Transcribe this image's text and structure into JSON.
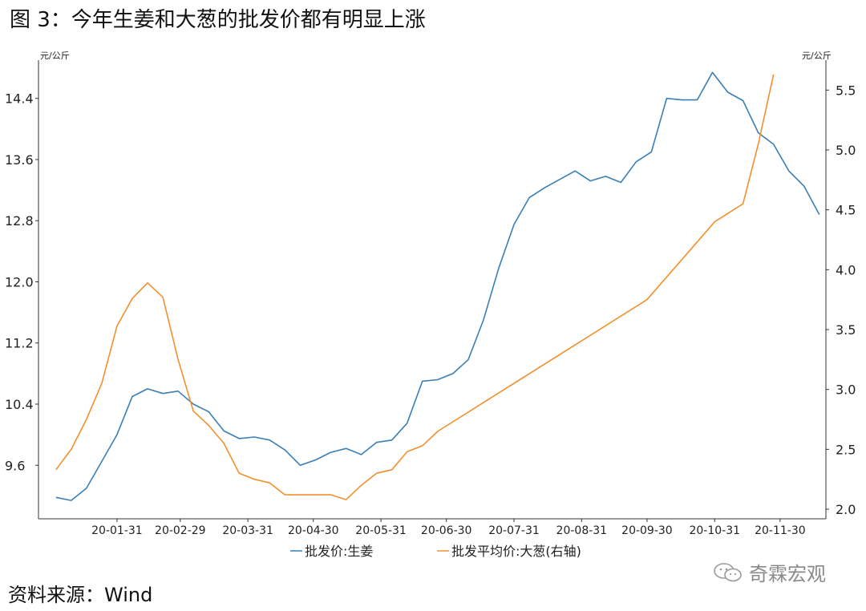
{
  "title": "图 3：今年生姜和大葱的批发价都有明显上涨",
  "source": "资料来源：Wind",
  "watermark": "奇霖宏观",
  "chart_data": {
    "type": "line",
    "left_unit": "元/公斤",
    "right_unit": "元/公斤",
    "x_ticks": [
      "20-01-31",
      "20-02-29",
      "20-03-31",
      "20-04-30",
      "20-05-31",
      "20-06-30",
      "20-07-31",
      "20-08-31",
      "20-09-30",
      "20-10-31",
      "20-11-30"
    ],
    "left_axis": {
      "min": 8.9,
      "max": 14.9,
      "ticks": [
        9.6,
        10.4,
        11.2,
        12.0,
        12.8,
        13.6,
        14.4
      ],
      "tick_labels": [
        "9.6",
        "10.4",
        "11.2",
        "12.0",
        "12.8",
        "13.6",
        "14.4"
      ]
    },
    "right_axis": {
      "min": 1.92,
      "max": 5.75,
      "ticks": [
        2.0,
        2.5,
        3.0,
        3.5,
        4.0,
        4.5,
        5.0,
        5.5
      ],
      "tick_labels": [
        "2.0",
        "2.5",
        "3.0",
        "3.5",
        "4.0",
        "4.5",
        "5.0",
        "5.5"
      ]
    },
    "series": [
      {
        "name": "批发价:生姜",
        "axis": "left",
        "color": "#3a7fb5",
        "x": [
          "2020-01-03",
          "2020-01-10",
          "2020-01-17",
          "2020-01-24",
          "2020-01-31",
          "2020-02-07",
          "2020-02-14",
          "2020-02-21",
          "2020-02-28",
          "2020-03-06",
          "2020-03-13",
          "2020-03-20",
          "2020-03-27",
          "2020-04-03",
          "2020-04-10",
          "2020-04-17",
          "2020-04-24",
          "2020-05-01",
          "2020-05-08",
          "2020-05-15",
          "2020-05-22",
          "2020-05-29",
          "2020-06-05",
          "2020-06-12",
          "2020-06-19",
          "2020-06-26",
          "2020-07-03",
          "2020-07-10",
          "2020-07-17",
          "2020-07-24",
          "2020-07-31",
          "2020-08-07",
          "2020-08-14",
          "2020-08-21",
          "2020-08-28",
          "2020-09-04",
          "2020-09-11",
          "2020-09-18",
          "2020-09-25",
          "2020-10-02",
          "2020-10-09",
          "2020-10-16",
          "2020-10-23",
          "2020-10-30",
          "2020-11-06",
          "2020-11-13",
          "2020-11-20",
          "2020-11-27",
          "2020-12-04",
          "2020-12-11",
          "2020-12-18"
        ],
        "values": [
          9.18,
          9.14,
          9.3,
          9.65,
          10.0,
          10.5,
          10.6,
          10.54,
          10.57,
          10.4,
          10.3,
          10.05,
          9.95,
          9.97,
          9.93,
          9.8,
          9.6,
          9.67,
          9.77,
          9.82,
          9.74,
          9.9,
          9.93,
          10.15,
          10.7,
          10.72,
          10.8,
          10.98,
          11.5,
          12.18,
          12.75,
          13.1,
          13.23,
          13.34,
          13.45,
          13.32,
          13.38,
          13.3,
          13.57,
          13.7,
          14.4,
          14.38,
          14.38,
          14.74,
          14.48,
          14.37,
          13.95,
          13.8,
          13.45,
          13.25,
          12.88
        ]
      },
      {
        "name": "批发平均价:大葱(右轴)",
        "axis": "right",
        "color": "#f2902e",
        "x": [
          "2020-01-03",
          "2020-01-10",
          "2020-01-17",
          "2020-01-24",
          "2020-01-31",
          "2020-02-07",
          "2020-02-14",
          "2020-02-21",
          "2020-02-28",
          "2020-03-06",
          "2020-03-13",
          "2020-03-20",
          "2020-03-27",
          "2020-04-03",
          "2020-04-10",
          "2020-04-17",
          "2020-04-24",
          "2020-05-01",
          "2020-05-08",
          "2020-05-15",
          "2020-05-22",
          "2020-05-29",
          "2020-06-05",
          "2020-06-12",
          "2020-06-19",
          "2020-06-26",
          "2020-09-30",
          "2020-10-31",
          "2020-11-06",
          "2020-11-13",
          "2020-11-20",
          "2020-11-27"
        ],
        "values": [
          2.33,
          2.5,
          2.75,
          3.05,
          3.53,
          3.76,
          3.89,
          3.77,
          3.25,
          2.82,
          2.7,
          2.55,
          2.3,
          2.25,
          2.22,
          2.12,
          2.12,
          2.12,
          2.12,
          2.08,
          2.2,
          2.3,
          2.33,
          2.48,
          2.53,
          2.65,
          3.75,
          4.4,
          4.47,
          4.55,
          5.05,
          5.63
        ]
      }
    ]
  }
}
